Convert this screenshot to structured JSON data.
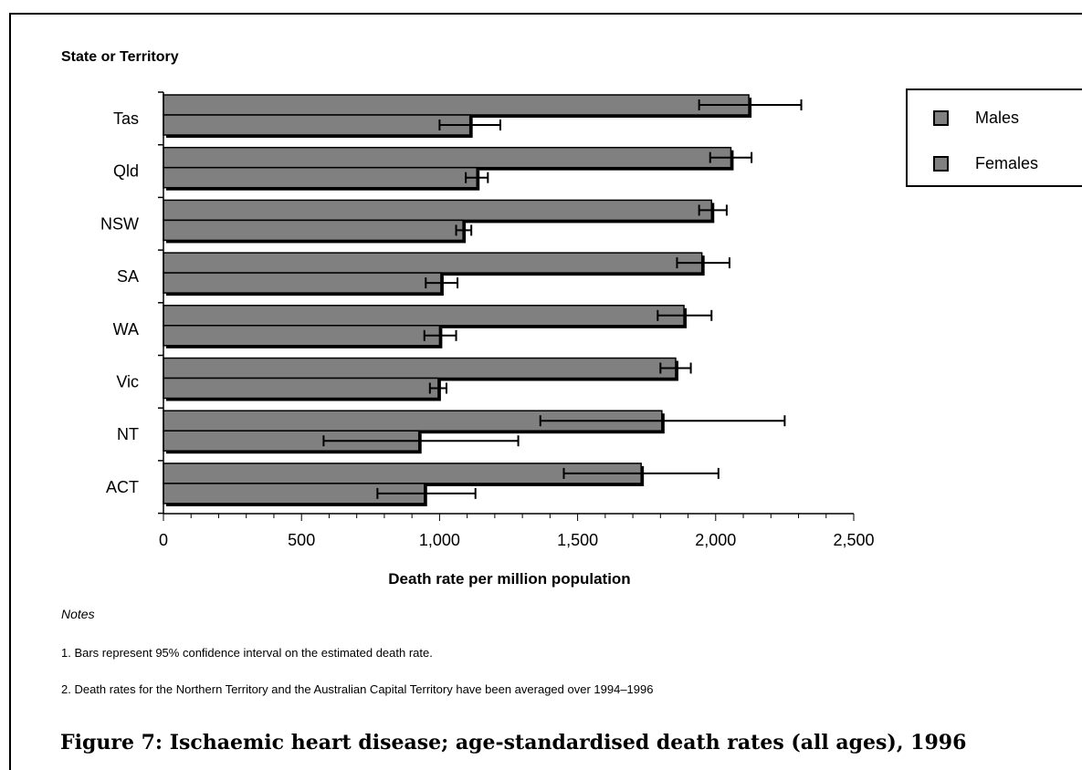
{
  "chart_data": {
    "type": "bar",
    "orientation": "horizontal",
    "categories": [
      "Tas",
      "Qld",
      "NSW",
      "SA",
      "WA",
      "Vic",
      "NT",
      "ACT"
    ],
    "series": [
      {
        "name": "Males",
        "color": "#808080",
        "values": [
          2120,
          2055,
          1985,
          1950,
          1885,
          1855,
          1805,
          1730
        ],
        "ci_low": [
          1940,
          1980,
          1940,
          1860,
          1790,
          1800,
          1365,
          1450
        ],
        "ci_high": [
          2310,
          2130,
          2040,
          2050,
          1985,
          1910,
          2250,
          2010
        ]
      },
      {
        "name": "Females",
        "color": "#808080",
        "values": [
          1110,
          1135,
          1085,
          1005,
          1000,
          995,
          925,
          945
        ],
        "ci_low": [
          1000,
          1095,
          1060,
          950,
          945,
          965,
          580,
          775
        ],
        "ci_high": [
          1220,
          1175,
          1115,
          1065,
          1060,
          1025,
          1285,
          1130
        ]
      }
    ],
    "xlim": [
      0,
      2500
    ],
    "xticks": [
      0,
      500,
      1000,
      1500,
      2000,
      2500
    ],
    "xtick_labels": [
      "0",
      "500",
      "1,000",
      "1,500",
      "2,000",
      "2,500"
    ],
    "xlabel": "Death rate per million population",
    "ylabel": "State or Territory",
    "legend_position": "top-right",
    "grid": false
  },
  "notes_title": "Notes",
  "notes": [
    "1. Bars represent 95% confidence interval on the estimated death rate.",
    "2. Death rates for  the Northern Territory and the Australian Capital Territory have been averaged over 1994–1996"
  ],
  "figure_caption": "Figure 7: Ischaemic heart disease; age-standardised death rates (all ages), 1996"
}
